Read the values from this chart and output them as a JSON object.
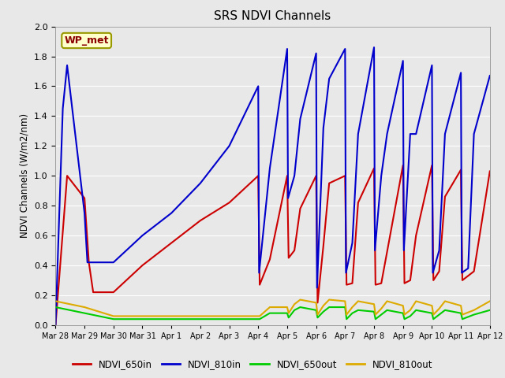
{
  "title": "SRS NDVI Channels",
  "ylabel": "NDVI Channels (W/m2/nm)",
  "annotation": "WP_met",
  "ylim": [
    0.0,
    2.0
  ],
  "plot_bg": "#e8e8e8",
  "fig_bg": "#e8e8e8",
  "legend_entries": [
    "NDVI_650in",
    "NDVI_810in",
    "NDVI_650out",
    "NDVI_810out"
  ],
  "colors": {
    "NDVI_650in": "#cc0000",
    "NDVI_810in": "#0000cc",
    "NDVI_650out": "#00cc00",
    "NDVI_810out": "#ddaa00"
  },
  "series": {
    "NDVI_650in": {
      "t": [
        0.0,
        0.4,
        1.0,
        1.15,
        1.3,
        2.0,
        3.0,
        4.0,
        5.0,
        6.0,
        7.0,
        7.05,
        7.4,
        8.0,
        8.05,
        8.25,
        8.45,
        9.0,
        9.05,
        9.25,
        9.45,
        10.0,
        10.05,
        10.25,
        10.45,
        11.0,
        11.05,
        11.25,
        11.45,
        12.0,
        12.05,
        12.25,
        12.45,
        13.0,
        13.05,
        13.25,
        13.45,
        14.0,
        14.05,
        14.45,
        15.0
      ],
      "y": [
        0.0,
        1.0,
        0.85,
        0.42,
        0.22,
        0.22,
        0.4,
        0.55,
        0.7,
        0.82,
        1.0,
        0.27,
        0.44,
        1.0,
        0.45,
        0.5,
        0.78,
        1.0,
        0.15,
        0.53,
        0.95,
        1.0,
        0.27,
        0.28,
        0.82,
        1.05,
        0.27,
        0.28,
        0.49,
        1.07,
        0.28,
        0.3,
        0.6,
        1.07,
        0.3,
        0.36,
        0.86,
        1.04,
        0.3,
        0.36,
        1.03
      ]
    },
    "NDVI_810in": {
      "t": [
        0.0,
        0.25,
        0.4,
        1.0,
        1.1,
        2.0,
        3.0,
        4.0,
        5.0,
        6.0,
        7.0,
        7.03,
        7.4,
        8.0,
        8.03,
        8.25,
        8.45,
        9.0,
        9.03,
        9.25,
        9.45,
        10.0,
        10.03,
        10.25,
        10.45,
        11.0,
        11.03,
        11.25,
        11.45,
        12.0,
        12.03,
        12.25,
        12.45,
        13.0,
        13.03,
        13.25,
        13.45,
        14.0,
        14.03,
        14.25,
        14.45,
        15.0
      ],
      "y": [
        0.0,
        1.45,
        1.74,
        0.75,
        0.42,
        0.42,
        0.6,
        0.75,
        0.95,
        1.2,
        1.6,
        0.35,
        1.05,
        1.85,
        0.85,
        1.0,
        1.38,
        1.82,
        0.25,
        1.32,
        1.65,
        1.85,
        0.35,
        0.55,
        1.28,
        1.86,
        0.5,
        1.0,
        1.28,
        1.77,
        0.5,
        1.28,
        1.28,
        1.74,
        0.35,
        0.5,
        1.28,
        1.69,
        0.35,
        0.38,
        1.28,
        1.67
      ]
    },
    "NDVI_650out": {
      "t": [
        0.0,
        1.0,
        2.0,
        3.0,
        4.0,
        5.0,
        6.0,
        7.0,
        7.05,
        7.4,
        8.0,
        8.05,
        8.25,
        8.45,
        9.0,
        9.05,
        9.25,
        9.45,
        10.0,
        10.05,
        10.25,
        10.45,
        11.0,
        11.05,
        11.25,
        11.45,
        12.0,
        12.05,
        12.25,
        12.45,
        13.0,
        13.05,
        13.25,
        13.45,
        14.0,
        14.05,
        14.45,
        15.0
      ],
      "y": [
        0.12,
        0.08,
        0.04,
        0.04,
        0.04,
        0.04,
        0.04,
        0.04,
        0.04,
        0.08,
        0.08,
        0.05,
        0.1,
        0.12,
        0.1,
        0.05,
        0.09,
        0.12,
        0.12,
        0.04,
        0.08,
        0.1,
        0.09,
        0.04,
        0.07,
        0.1,
        0.08,
        0.04,
        0.06,
        0.1,
        0.08,
        0.04,
        0.07,
        0.1,
        0.08,
        0.04,
        0.07,
        0.1
      ]
    },
    "NDVI_810out": {
      "t": [
        0.0,
        1.0,
        2.0,
        3.0,
        4.0,
        5.0,
        6.0,
        7.0,
        7.05,
        7.4,
        8.0,
        8.05,
        8.25,
        8.45,
        9.0,
        9.05,
        9.25,
        9.45,
        10.0,
        10.05,
        10.25,
        10.45,
        11.0,
        11.05,
        11.25,
        11.45,
        12.0,
        12.05,
        12.25,
        12.45,
        13.0,
        13.05,
        13.25,
        13.45,
        14.0,
        14.05,
        14.45,
        15.0
      ],
      "y": [
        0.16,
        0.12,
        0.06,
        0.06,
        0.06,
        0.06,
        0.06,
        0.06,
        0.06,
        0.12,
        0.12,
        0.08,
        0.14,
        0.17,
        0.15,
        0.07,
        0.13,
        0.17,
        0.16,
        0.07,
        0.12,
        0.16,
        0.14,
        0.07,
        0.11,
        0.16,
        0.13,
        0.07,
        0.1,
        0.16,
        0.13,
        0.07,
        0.11,
        0.16,
        0.13,
        0.07,
        0.1,
        0.16
      ]
    }
  },
  "x_tick_labels": [
    "Mar 28",
    "Mar 29",
    "Mar 30",
    "Mar 31",
    "Apr 1",
    "Apr 2",
    "Apr 3",
    "Apr 4",
    "Apr 5",
    "Apr 6",
    "Apr 7",
    "Apr 8",
    "Apr 9",
    "Apr 10",
    "Apr 11",
    "Apr 12"
  ],
  "x_tick_pos": [
    0,
    1,
    2,
    3,
    4,
    5,
    6,
    7,
    8,
    9,
    10,
    11,
    12,
    13,
    14,
    15
  ]
}
